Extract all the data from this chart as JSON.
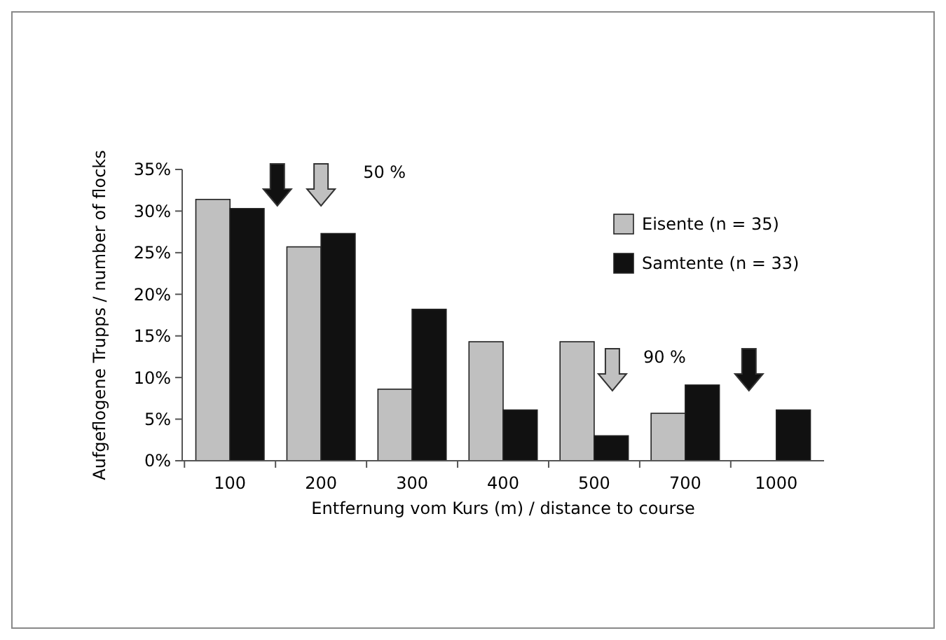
{
  "chart_data": {
    "type": "bar",
    "xlabel": "Entfernung vom Kurs (m) / distance to course",
    "ylabel": "Aufgeflogene Trupps / number of flocks",
    "categories": [
      "100",
      "200",
      "300",
      "400",
      "500",
      "700",
      "1000"
    ],
    "series": [
      {
        "name": "Eisente (n = 35)",
        "color": "#c0c0c0",
        "values": [
          31.4,
          25.7,
          8.6,
          14.3,
          14.3,
          5.7,
          0
        ]
      },
      {
        "name": "Samtente (n = 33)",
        "color": "#111111",
        "values": [
          30.3,
          27.3,
          18.2,
          6.1,
          3.0,
          9.1,
          6.1
        ]
      }
    ],
    "ylim": [
      0,
      35
    ],
    "yticks": [
      {
        "value": 0,
        "label": "0%"
      },
      {
        "value": 5,
        "label": "5%"
      },
      {
        "value": 10,
        "label": "10%"
      },
      {
        "value": 15,
        "label": "15%"
      },
      {
        "value": 20,
        "label": "20%"
      },
      {
        "value": 25,
        "label": "25%"
      },
      {
        "value": 30,
        "label": "30%"
      },
      {
        "value": 35,
        "label": "35%"
      }
    ],
    "legend": "top right",
    "grid": false,
    "annotations": [
      "50 %",
      "90 %"
    ]
  }
}
